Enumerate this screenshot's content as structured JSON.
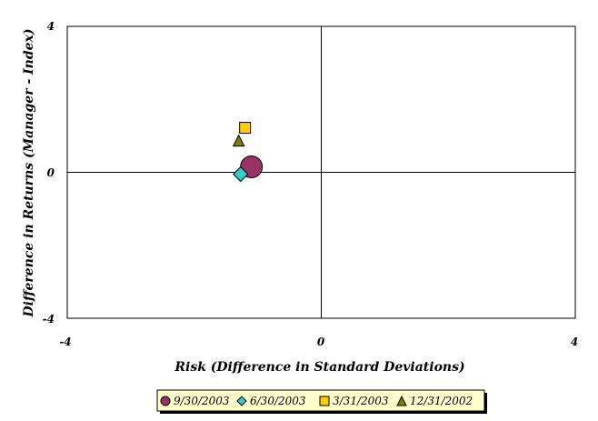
{
  "chart_data": {
    "type": "scatter",
    "xlabel": "Risk (Difference in Standard Deviations)",
    "ylabel": "Difference in Returns (Manager - Index)",
    "xlim": [
      -4,
      4
    ],
    "ylim": [
      -4,
      4
    ],
    "x_ticks": [
      "-4",
      "0",
      "4"
    ],
    "y_ticks": [
      "4",
      "0",
      "-4"
    ],
    "grid": false,
    "crosshair_at_zero": true,
    "legend_position": "bottom",
    "series": [
      {
        "name": "9/30/2003",
        "marker": "circle",
        "color": "#993366",
        "x": -1.1,
        "y": 0.15,
        "size": "large"
      },
      {
        "name": "6/30/2003",
        "marker": "diamond",
        "color": "#33CCCC",
        "x": -1.27,
        "y": -0.05,
        "size": "medium"
      },
      {
        "name": "3/31/2003",
        "marker": "square",
        "color": "#FFCC00",
        "x": -1.2,
        "y": 1.22,
        "size": "small"
      },
      {
        "name": "12/31/2002",
        "marker": "triangle",
        "color": "#808000",
        "x": -1.3,
        "y": 0.87,
        "size": "small"
      }
    ]
  }
}
